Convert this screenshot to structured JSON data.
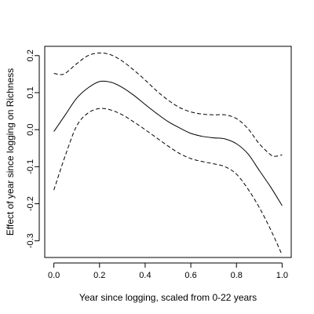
{
  "chart_data": {
    "type": "line",
    "title": "",
    "xlabel": "Year since logging, scaled from 0-22 years",
    "ylabel": "Effect of year since logging on Richness",
    "xlim": [
      -0.04,
      1.04
    ],
    "ylim": [
      -0.345,
      0.225
    ],
    "xticks": [
      0.0,
      0.2,
      0.4,
      0.6,
      0.8,
      1.0
    ],
    "xtick_labels": [
      "0.0",
      "0.2",
      "0.4",
      "0.6",
      "0.8",
      "1.0"
    ],
    "yticks": [
      -0.3,
      -0.2,
      -0.1,
      0.0,
      0.1,
      0.2
    ],
    "ytick_labels": [
      "-0.3",
      "-0.2",
      "-0.1",
      "0.0",
      "0.1",
      "0.2"
    ],
    "grid": false,
    "series": [
      {
        "style": "solid",
        "x": [
          0.0,
          0.05,
          0.1,
          0.15,
          0.2,
          0.25,
          0.3,
          0.35,
          0.4,
          0.45,
          0.5,
          0.55,
          0.6,
          0.65,
          0.7,
          0.75,
          0.8,
          0.85,
          0.9,
          0.95,
          1.0
        ],
        "y": [
          -0.005,
          0.04,
          0.085,
          0.113,
          0.13,
          0.128,
          0.114,
          0.093,
          0.068,
          0.044,
          0.022,
          0.005,
          -0.01,
          -0.018,
          -0.022,
          -0.025,
          -0.038,
          -0.065,
          -0.11,
          -0.155,
          -0.205
        ]
      },
      {
        "style": "dashed",
        "x": [
          0.0,
          0.025,
          0.05,
          0.1,
          0.15,
          0.2,
          0.25,
          0.3,
          0.35,
          0.4,
          0.45,
          0.5,
          0.55,
          0.6,
          0.65,
          0.7,
          0.75,
          0.8,
          0.85,
          0.9,
          0.95,
          0.97,
          1.0
        ],
        "y": [
          0.152,
          0.149,
          0.152,
          0.178,
          0.2,
          0.207,
          0.202,
          0.185,
          0.161,
          0.134,
          0.105,
          0.08,
          0.06,
          0.048,
          0.042,
          0.04,
          0.04,
          0.03,
          0.003,
          -0.038,
          -0.068,
          -0.072,
          -0.068
        ]
      },
      {
        "style": "dashed",
        "x": [
          0.0,
          0.05,
          0.1,
          0.15,
          0.2,
          0.25,
          0.3,
          0.35,
          0.4,
          0.45,
          0.5,
          0.55,
          0.6,
          0.65,
          0.7,
          0.75,
          0.8,
          0.85,
          0.9,
          0.95,
          1.0
        ],
        "y": [
          -0.163,
          -0.07,
          0.01,
          0.045,
          0.057,
          0.053,
          0.04,
          0.021,
          0.0,
          -0.022,
          -0.044,
          -0.064,
          -0.078,
          -0.086,
          -0.092,
          -0.1,
          -0.12,
          -0.16,
          -0.21,
          -0.27,
          -0.338
        ]
      }
    ]
  }
}
